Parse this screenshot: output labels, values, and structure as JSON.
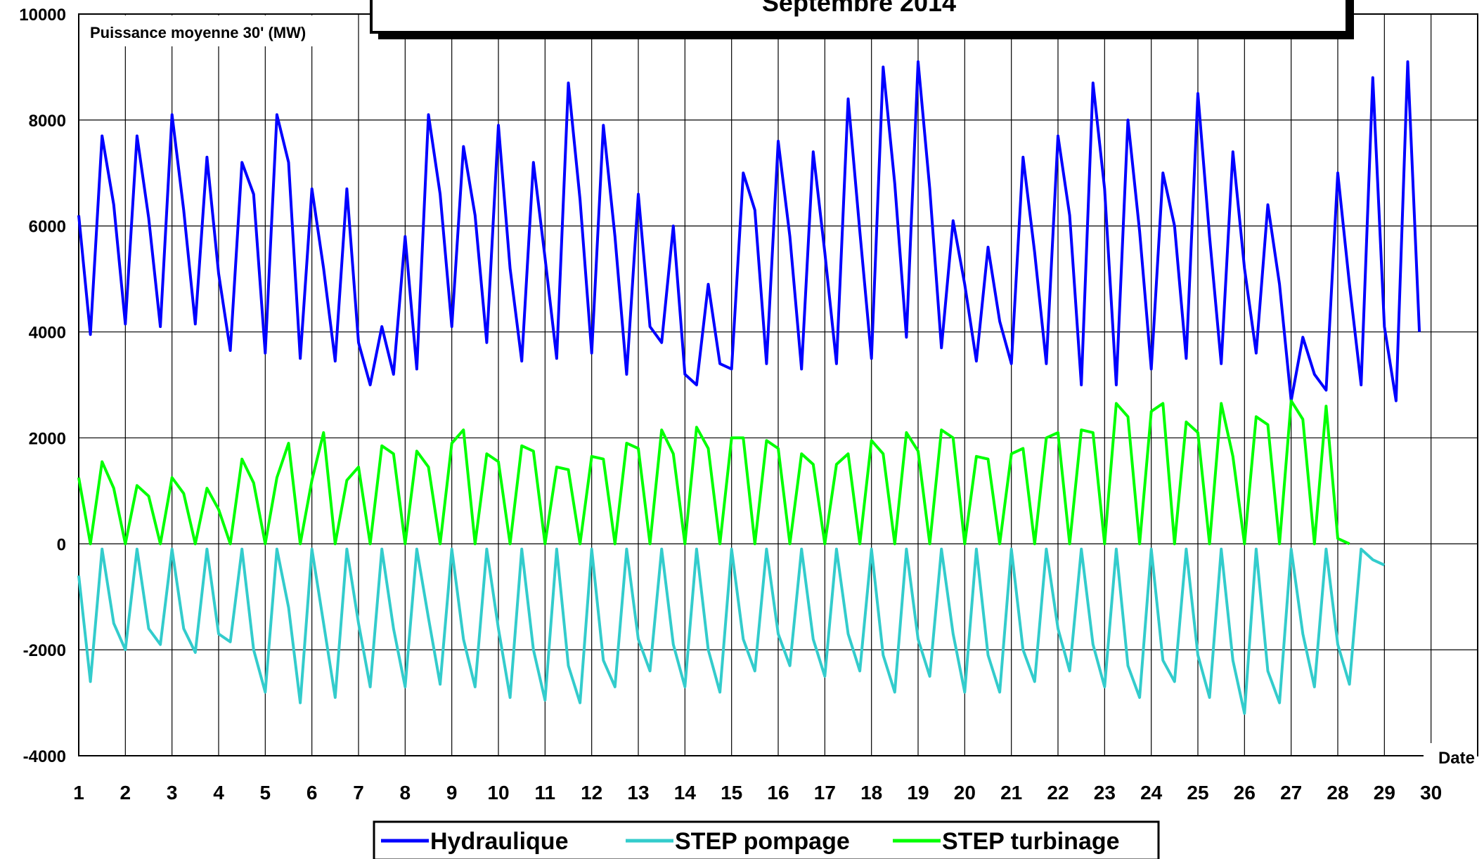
{
  "chart_data": {
    "type": "line",
    "title": "Septembre 2014",
    "ylabel": "Puissance moyenne 30' (MW)",
    "xlabel": "Date",
    "xlim": [
      1,
      31
    ],
    "ylim": [
      -4000,
      10000
    ],
    "y_ticks": [
      "10000",
      "8000",
      "6000",
      "4000",
      "2000",
      "0",
      "-2000",
      "-4000"
    ],
    "y_tick_values": [
      10000,
      8000,
      6000,
      4000,
      2000,
      0,
      -2000,
      -4000
    ],
    "x_ticks": [
      "1",
      "2",
      "3",
      "4",
      "5",
      "6",
      "7",
      "8",
      "9",
      "10",
      "11",
      "12",
      "13",
      "14",
      "15",
      "16",
      "17",
      "18",
      "19",
      "20",
      "21",
      "22",
      "23",
      "24",
      "25",
      "26",
      "27",
      "28",
      "29",
      "30"
    ],
    "x_tick_values": [
      1,
      2,
      3,
      4,
      5,
      6,
      7,
      8,
      9,
      10,
      11,
      12,
      13,
      14,
      15,
      16,
      17,
      18,
      19,
      20,
      21,
      22,
      23,
      24,
      25,
      26,
      27,
      28,
      29,
      30
    ],
    "grid": "vertical and horizontal",
    "legend_position": "bottom-center",
    "samples_per_day": 4,
    "series": [
      {
        "name": "Hydraulique",
        "color": "#0000ff",
        "values": [
          6200,
          3950,
          7700,
          6400,
          4150,
          7700,
          6150,
          4100,
          8100,
          6300,
          4150,
          7300,
          5100,
          3650,
          7200,
          6600,
          3600,
          8100,
          7200,
          3500,
          6700,
          5200,
          3450,
          6700,
          3800,
          3000,
          4100,
          3200,
          5800,
          3300,
          8100,
          6600,
          4100,
          7500,
          6200,
          3800,
          7900,
          5200,
          3450,
          7200,
          5400,
          3500,
          8700,
          6500,
          3600,
          7900,
          5800,
          3200,
          6600,
          4100,
          3800,
          6000,
          3200,
          3000,
          4900,
          3400,
          3300,
          7000,
          6300,
          3400,
          7600,
          5800,
          3300,
          7400,
          5500,
          3400,
          8400,
          5900,
          3500,
          9000,
          6800,
          3900,
          9100,
          6700,
          3700,
          6100,
          4900,
          3450,
          5600,
          4200,
          3400,
          7300,
          5500,
          3400,
          7700,
          6200,
          3000,
          8700,
          6700,
          3000,
          8000,
          5900,
          3300,
          7000,
          6000,
          3500,
          8500,
          5800,
          3400,
          7400,
          5200,
          3600,
          6400,
          4900,
          2700,
          3900,
          3200,
          2900,
          7000,
          4900,
          3000,
          8800,
          4100,
          2700,
          9100,
          4000
        ]
      },
      {
        "name": "STEP pompage",
        "color": "#33cccc",
        "values": [
          -600,
          -2600,
          -100,
          -1500,
          -2000,
          -100,
          -1600,
          -1900,
          -100,
          -1600,
          -2050,
          -100,
          -1700,
          -1850,
          -100,
          -2000,
          -2800,
          -100,
          -1200,
          -3000,
          -100,
          -1500,
          -2900,
          -100,
          -1500,
          -2700,
          -100,
          -1600,
          -2700,
          -100,
          -1400,
          -2650,
          -100,
          -1800,
          -2700,
          -100,
          -1600,
          -2900,
          -100,
          -2000,
          -2950,
          -100,
          -2300,
          -3000,
          -100,
          -2200,
          -2700,
          -100,
          -1800,
          -2400,
          -100,
          -1900,
          -2700,
          -100,
          -2000,
          -2800,
          -100,
          -1800,
          -2400,
          -100,
          -1700,
          -2300,
          -100,
          -1800,
          -2500,
          -100,
          -1700,
          -2400,
          -100,
          -2100,
          -2800,
          -100,
          -1800,
          -2500,
          -100,
          -1700,
          -2800,
          -100,
          -2100,
          -2800,
          -100,
          -2000,
          -2600,
          -100,
          -1600,
          -2400,
          -100,
          -1900,
          -2700,
          -100,
          -2300,
          -2900,
          -100,
          -2200,
          -2600,
          -100,
          -2100,
          -2900,
          -100,
          -2200,
          -3200,
          -100,
          -2400,
          -3000,
          -100,
          -1700,
          -2700,
          -100,
          -1900,
          -2650,
          -100,
          -300,
          -400
        ]
      },
      {
        "name": "STEP turbinage",
        "color": "#00ff00",
        "values": [
          1250,
          0,
          1550,
          1050,
          0,
          1100,
          900,
          0,
          1250,
          950,
          0,
          1050,
          650,
          0,
          1600,
          1150,
          0,
          1250,
          1900,
          0,
          1200,
          2100,
          0,
          1200,
          1450,
          0,
          1850,
          1700,
          0,
          1750,
          1450,
          0,
          1900,
          2150,
          0,
          1700,
          1550,
          0,
          1850,
          1750,
          0,
          1450,
          1400,
          0,
          1650,
          1600,
          0,
          1900,
          1800,
          0,
          2150,
          1700,
          0,
          2200,
          1800,
          0,
          2000,
          2000,
          0,
          1950,
          1800,
          0,
          1700,
          1500,
          0,
          1500,
          1700,
          0,
          1950,
          1700,
          0,
          2100,
          1750,
          0,
          2150,
          2000,
          0,
          1650,
          1600,
          0,
          1700,
          1800,
          0,
          2000,
          2100,
          0,
          2150,
          2100,
          0,
          2650,
          2400,
          0,
          2500,
          2650,
          0,
          2300,
          2100,
          0,
          2650,
          1650,
          0,
          2400,
          2250,
          0,
          2700,
          2350,
          0,
          2600,
          100,
          0
        ]
      }
    ]
  }
}
